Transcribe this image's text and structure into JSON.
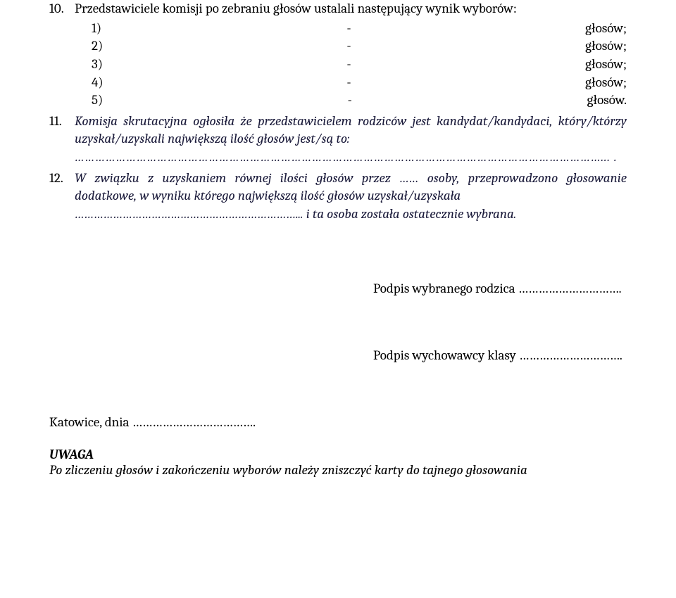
{
  "item10": {
    "num": "10.",
    "text": "Przedstawiciele komisji po zebraniu głosów ustalali następujący wynik wyborów:",
    "rows": [
      {
        "n": "1)",
        "dash": "-",
        "g": "głosów;"
      },
      {
        "n": "2)",
        "dash": "-",
        "g": "głosów;"
      },
      {
        "n": "3)",
        "dash": "-",
        "g": "głosów;"
      },
      {
        "n": "4)",
        "dash": "-",
        "g": "głosów;"
      },
      {
        "n": "5)",
        "dash": "-",
        "g": "głosów."
      }
    ]
  },
  "item11": {
    "num": "11.",
    "text": "Komisja skrutacyjna ogłosiła że przedstawicielem rodziców jest kandydat/kandydaci, który/którzy uzyskał/uzyskali największą ilość głosów jest/są to:",
    "dots": "………………………………………………………………………………………………………………………………………... ."
  },
  "item12": {
    "num": "12.",
    "text": "W związku z uzyskaniem równej ilości głosów przez …… osoby, przeprowadzono głosowanie dodatkowe, w wyniku którego największą ilość głosów uzyskał/uzyskała",
    "after": "……………………………………………………………... i ta osoba została ostatecznie wybrana."
  },
  "sig1": "Podpis wybranego rodzica ………………………….",
  "sig2": "Podpis wychowawcy klasy ………………………….",
  "katowice": "Katowice, dnia ……………………………….",
  "uwaga_title": "UWAGA",
  "uwaga_text": "Po zliczeniu głosów i zakończeniu wyborów należy zniszczyć karty do tajnego głosowania"
}
